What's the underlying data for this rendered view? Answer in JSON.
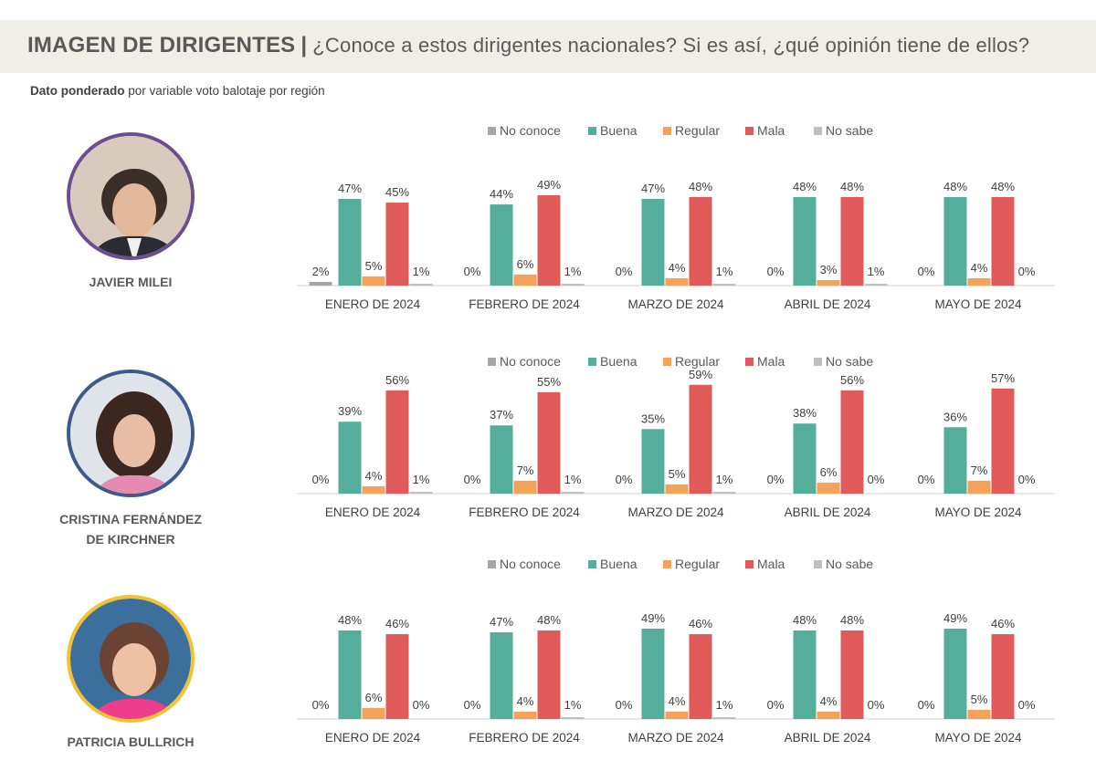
{
  "header": {
    "title": "IMAGEN DE DIRIGENTES",
    "separator": "|",
    "question": "¿Conoce a estos dirigentes nacionales? Si es así, ¿qué opinión tiene de ellos?"
  },
  "subtitle": {
    "bold": "Dato ponderado",
    "rest": " por variable voto balotaje por región"
  },
  "colors": {
    "No conoce": "#a6a6a6",
    "Buena": "#55ad9b",
    "Regular": "#f4a259",
    "Mala": "#e05a5a",
    "No sabe": "#bfbfbf"
  },
  "people": [
    {
      "name": "JAVIER MILEI",
      "photo_border": "#6a4e8f"
    },
    {
      "name_line1": "CRISTINA FERNÁNDEZ",
      "name_line2": "DE KIRCHNER",
      "photo_border": "#3d5a8a"
    },
    {
      "name": "PATRICIA BULLRICH",
      "photo_border": "#f2c230"
    }
  ],
  "chart_data": [
    {
      "type": "bar",
      "title": "JAVIER MILEI",
      "legend": [
        "No conoce",
        "Buena",
        "Regular",
        "Mala",
        "No sabe"
      ],
      "legend_position": "top",
      "categories": [
        "ENERO DE 2024",
        "FEBRERO DE 2024",
        "MARZO  DE 2024",
        "ABRIL  DE 2024",
        "MAYO DE 2024"
      ],
      "series": [
        {
          "name": "No conoce",
          "values": [
            2,
            0,
            0,
            0,
            0
          ]
        },
        {
          "name": "Buena",
          "values": [
            47,
            44,
            47,
            48,
            48
          ]
        },
        {
          "name": "Regular",
          "values": [
            5,
            6,
            4,
            3,
            4
          ]
        },
        {
          "name": "Mala",
          "values": [
            45,
            49,
            48,
            48,
            48
          ]
        },
        {
          "name": "No sabe",
          "values": [
            1,
            1,
            1,
            1,
            0
          ]
        }
      ],
      "ylim": [
        0,
        60
      ]
    },
    {
      "type": "bar",
      "title": "CRISTINA FERNÁNDEZ DE KIRCHNER",
      "legend": [
        "No conoce",
        "Buena",
        "Regular",
        "Mala",
        "No sabe"
      ],
      "legend_position": "top",
      "categories": [
        "ENERO DE 2024",
        "FEBRERO DE 2024",
        "MARZO DE 2024",
        "ABRIL  DE 2024",
        "MAYO DE 2024"
      ],
      "series": [
        {
          "name": "No conoce",
          "values": [
            0,
            0,
            0,
            0,
            0
          ]
        },
        {
          "name": "Buena",
          "values": [
            39,
            37,
            35,
            38,
            36
          ]
        },
        {
          "name": "Regular",
          "values": [
            4,
            7,
            5,
            6,
            7
          ]
        },
        {
          "name": "Mala",
          "values": [
            56,
            55,
            59,
            56,
            57
          ]
        },
        {
          "name": "No sabe",
          "values": [
            1,
            1,
            1,
            0,
            0
          ]
        }
      ],
      "ylim": [
        0,
        60
      ]
    },
    {
      "type": "bar",
      "title": "PATRICIA BULLRICH",
      "legend": [
        "No conoce",
        "Buena",
        "Regular",
        "Mala",
        "No sabe"
      ],
      "legend_position": "top",
      "categories": [
        "ENERO DE 2024",
        "FEBRERO DE 2024",
        "MARZO DE 2024",
        "ABRIL  DE 2024",
        "MAYO DE 2024"
      ],
      "series": [
        {
          "name": "No conoce",
          "values": [
            0,
            0,
            0,
            0,
            0
          ]
        },
        {
          "name": "Buena",
          "values": [
            48,
            47,
            49,
            48,
            49
          ]
        },
        {
          "name": "Regular",
          "values": [
            6,
            4,
            4,
            4,
            5
          ]
        },
        {
          "name": "Mala",
          "values": [
            46,
            48,
            46,
            48,
            46
          ]
        },
        {
          "name": "No sabe",
          "values": [
            0,
            1,
            1,
            0,
            0
          ]
        }
      ],
      "ylim": [
        0,
        60
      ]
    }
  ]
}
